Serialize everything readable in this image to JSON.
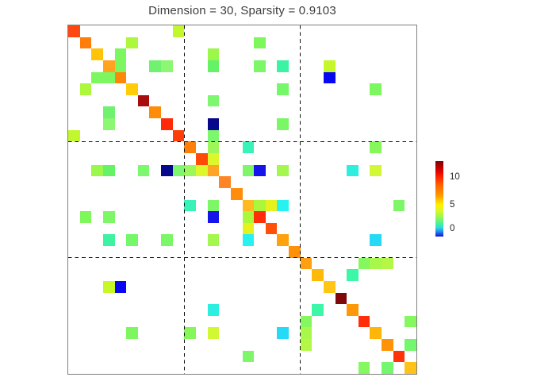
{
  "figure": {
    "title": "Dimension = 30, Sparsity = 0.9103",
    "dimension_shown": 30,
    "sparsity_shown": 0.9103
  },
  "chart_data": {
    "type": "heatmap",
    "title": "Dimension = 30, Sparsity = 0.9103",
    "matrix_size": 30,
    "symmetric": true,
    "zero_cell_color": "#ffffff",
    "colormap": "jet-like",
    "block_grid_lines_at": [
      10,
      20
    ],
    "grid_line_style": "black dashed",
    "colorbar": {
      "ticks": [
        {
          "label": "10",
          "pos": 0.216
        },
        {
          "label": "5",
          "pos": 0.589
        },
        {
          "label": "0",
          "pos": 0.9
        }
      ],
      "gradient_stops_top_to_bottom": [
        {
          "color": "#7c0000",
          "at": 0.0
        },
        {
          "color": "#a50000",
          "at": 0.05
        },
        {
          "color": "#e00000",
          "at": 0.13
        },
        {
          "color": "#ff2800",
          "at": 0.22
        },
        {
          "color": "#ff6400",
          "at": 0.32
        },
        {
          "color": "#ff9600",
          "at": 0.45
        },
        {
          "color": "#ffc800",
          "at": 0.52
        },
        {
          "color": "#fff000",
          "at": 0.58
        },
        {
          "color": "#d8f828",
          "at": 0.66
        },
        {
          "color": "#90f858",
          "at": 0.75
        },
        {
          "color": "#48f098",
          "at": 0.83
        },
        {
          "color": "#28e0e0",
          "at": 0.88
        },
        {
          "color": "#2890f0",
          "at": 0.93
        },
        {
          "color": "#1010d8",
          "at": 1.0
        }
      ]
    },
    "diagonal_cells": [
      {
        "i": 0,
        "color": "#ff4712",
        "value_est": 8.6
      },
      {
        "i": 1,
        "color": "#ff7d08",
        "value_est": 7.8
      },
      {
        "i": 2,
        "color": "#ffc408",
        "value_est": 6.5
      },
      {
        "i": 3,
        "color": "#ffa321",
        "value_est": 7.2
      },
      {
        "i": 4,
        "color": "#ff8708",
        "value_est": 7.6
      },
      {
        "i": 5,
        "color": "#ffcc08",
        "value_est": 6.4
      },
      {
        "i": 6,
        "color": "#a80d0d",
        "value_est": 11.3
      },
      {
        "i": 7,
        "color": "#ff8c08",
        "value_est": 7.6
      },
      {
        "i": 8,
        "color": "#ff2b08",
        "value_est": 9.3
      },
      {
        "i": 9,
        "color": "#ff3d08",
        "value_est": 9.0
      },
      {
        "i": 10,
        "color": "#ff8008",
        "value_est": 7.7
      },
      {
        "i": 11,
        "color": "#ff4a08",
        "value_est": 8.6
      },
      {
        "i": 12,
        "color": "#ffa424",
        "value_est": 7.1
      },
      {
        "i": 13,
        "color": "#ff8426",
        "value_est": 7.7
      },
      {
        "i": 14,
        "color": "#ff8c0d",
        "value_est": 7.6
      },
      {
        "i": 15,
        "color": "#ffb921",
        "value_est": 6.8
      },
      {
        "i": 16,
        "color": "#ff2d08",
        "value_est": 9.3
      },
      {
        "i": 17,
        "color": "#ff4f08",
        "value_est": 8.5
      },
      {
        "i": 18,
        "color": "#ffa00d",
        "value_est": 7.3
      },
      {
        "i": 19,
        "color": "#ff9008",
        "value_est": 7.5
      },
      {
        "i": 20,
        "color": "#ffa012",
        "value_est": 7.3
      },
      {
        "i": 21,
        "color": "#ffb908",
        "value_est": 6.8
      },
      {
        "i": 22,
        "color": "#ffc618",
        "value_est": 6.5
      },
      {
        "i": 23,
        "color": "#7f0808",
        "value_est": 12.4
      },
      {
        "i": 24,
        "color": "#ff9808",
        "value_est": 7.4
      },
      {
        "i": 25,
        "color": "#ff2d08",
        "value_est": 9.3
      },
      {
        "i": 26,
        "color": "#ffb608",
        "value_est": 6.9
      },
      {
        "i": 27,
        "color": "#ff9308",
        "value_est": 7.5
      },
      {
        "i": 28,
        "color": "#ff3308",
        "value_est": 9.2
      },
      {
        "i": 29,
        "color": "#ffc219",
        "value_est": 6.6
      }
    ],
    "off_diagonal_pairs": [
      {
        "r": 0,
        "c": 9,
        "color": "#c2f72e",
        "value_est": 3.8
      },
      {
        "r": 1,
        "c": 5,
        "color": "#adf73c",
        "value_est": 3.6
      },
      {
        "r": 1,
        "c": 16,
        "color": "#7df75a",
        "value_est": 2.9
      },
      {
        "r": 2,
        "c": 4,
        "color": "#7df75f",
        "value_est": 2.9
      },
      {
        "r": 2,
        "c": 12,
        "color": "#9cf74b",
        "value_est": 3.3
      },
      {
        "r": 3,
        "c": 4,
        "color": "#7df75f",
        "value_est": 2.9
      },
      {
        "r": 3,
        "c": 7,
        "color": "#70f270",
        "value_est": 2.7
      },
      {
        "r": 3,
        "c": 8,
        "color": "#8cf773",
        "value_est": 3.0
      },
      {
        "r": 3,
        "c": 12,
        "color": "#66f266",
        "value_est": 2.6
      },
      {
        "r": 3,
        "c": 16,
        "color": "#7df768",
        "value_est": 2.8
      },
      {
        "r": 3,
        "c": 18,
        "color": "#3cf2a3",
        "value_est": 1.7
      },
      {
        "r": 3,
        "c": 22,
        "color": "#c6f729",
        "value_est": 3.9
      },
      {
        "r": 4,
        "c": 22,
        "color": "#0808f0",
        "value_est": -0.9
      },
      {
        "r": 5,
        "c": 18,
        "color": "#74f768",
        "value_est": 2.7
      },
      {
        "r": 5,
        "c": 26,
        "color": "#7df75f",
        "value_est": 2.9
      },
      {
        "r": 6,
        "c": 12,
        "color": "#7df76e",
        "value_est": 2.8
      },
      {
        "r": 8,
        "c": 12,
        "color": "#08088c",
        "value_est": -1.4
      },
      {
        "r": 8,
        "c": 18,
        "color": "#7af765",
        "value_est": 2.8
      },
      {
        "r": 9,
        "c": 12,
        "color": "#7df76e",
        "value_est": 2.8
      },
      {
        "r": 10,
        "c": 12,
        "color": "#9cf75a",
        "value_est": 3.3
      },
      {
        "r": 10,
        "c": 15,
        "color": "#38f2b8",
        "value_est": 1.5
      },
      {
        "r": 10,
        "c": 26,
        "color": "#85f75a",
        "value_est": 3.0
      },
      {
        "r": 11,
        "c": 12,
        "color": "#dcf72b",
        "value_est": 4.2
      },
      {
        "r": 12,
        "c": 15,
        "color": "#7df768",
        "value_est": 2.8
      },
      {
        "r": 12,
        "c": 16,
        "color": "#1414eb",
        "value_est": -0.8
      },
      {
        "r": 12,
        "c": 18,
        "color": "#a3f74e",
        "value_est": 3.4
      },
      {
        "r": 12,
        "c": 24,
        "color": "#2cefe0",
        "value_est": 1.0
      },
      {
        "r": 12,
        "c": 26,
        "color": "#d2f733",
        "value_est": 4.1
      },
      {
        "r": 15,
        "c": 16,
        "color": "#aaf73c",
        "value_est": 3.5
      },
      {
        "r": 15,
        "c": 17,
        "color": "#e5f21e",
        "value_est": 4.4
      },
      {
        "r": 15,
        "c": 18,
        "color": "#26f2f2",
        "value_est": 0.9
      },
      {
        "r": 15,
        "c": 28,
        "color": "#7df768",
        "value_est": 2.8
      },
      {
        "r": 18,
        "c": 26,
        "color": "#26d9f7",
        "value_est": 0.3
      },
      {
        "r": 20,
        "c": 25,
        "color": "#85f75f",
        "value_est": 3.0
      },
      {
        "r": 20,
        "c": 26,
        "color": "#a8f74b",
        "value_est": 3.5
      },
      {
        "r": 20,
        "c": 27,
        "color": "#b4f746",
        "value_est": 3.6
      },
      {
        "r": 21,
        "c": 24,
        "color": "#3cf7a8",
        "value_est": 1.6
      },
      {
        "r": 25,
        "c": 29,
        "color": "#85f75f",
        "value_est": 3.0
      },
      {
        "r": 27,
        "c": 29,
        "color": "#74f76e",
        "value_est": 2.7
      }
    ]
  }
}
